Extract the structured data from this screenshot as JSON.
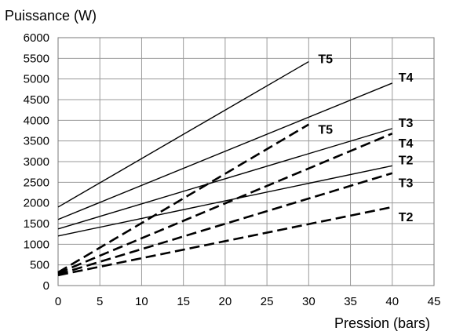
{
  "chart_data": {
    "type": "line",
    "title": "",
    "xlabel": "Pression (bars)",
    "ylabel": "Puissance (W)",
    "xlim": [
      0,
      45
    ],
    "ylim": [
      0,
      6000
    ],
    "xticks": [
      0,
      5,
      10,
      15,
      20,
      25,
      30,
      35,
      40,
      45
    ],
    "yticks": [
      0,
      500,
      1000,
      1500,
      2000,
      2500,
      3000,
      3500,
      4000,
      4500,
      5000,
      5500,
      6000
    ],
    "grid": true,
    "legend": "none",
    "series": [
      {
        "name": "T5",
        "style": "solid",
        "x": [
          0,
          30
        ],
        "y": [
          1900,
          5420
        ],
        "label_pos": "end-above"
      },
      {
        "name": "T4",
        "style": "solid",
        "x": [
          0,
          40
        ],
        "y": [
          1600,
          4900
        ],
        "label_pos": "end-above"
      },
      {
        "name": "T3",
        "style": "solid",
        "x": [
          0,
          40
        ],
        "y": [
          1370,
          3800
        ],
        "label_pos": "end-above"
      },
      {
        "name": "T2",
        "style": "solid",
        "x": [
          0,
          40
        ],
        "y": [
          1200,
          2900
        ],
        "label_pos": "end-above"
      },
      {
        "name": "T5",
        "style": "dashed",
        "x": [
          0,
          30
        ],
        "y": [
          320,
          3900
        ],
        "label_pos": "end-right"
      },
      {
        "name": "T4",
        "style": "dashed",
        "x": [
          0,
          40
        ],
        "y": [
          300,
          3680
        ],
        "label_pos": "end-below"
      },
      {
        "name": "T3",
        "style": "dashed",
        "x": [
          0,
          40
        ],
        "y": [
          270,
          2720
        ],
        "label_pos": "end-below"
      },
      {
        "name": "T2",
        "style": "dashed",
        "x": [
          0,
          40
        ],
        "y": [
          250,
          1900
        ],
        "label_pos": "end-below"
      }
    ]
  }
}
